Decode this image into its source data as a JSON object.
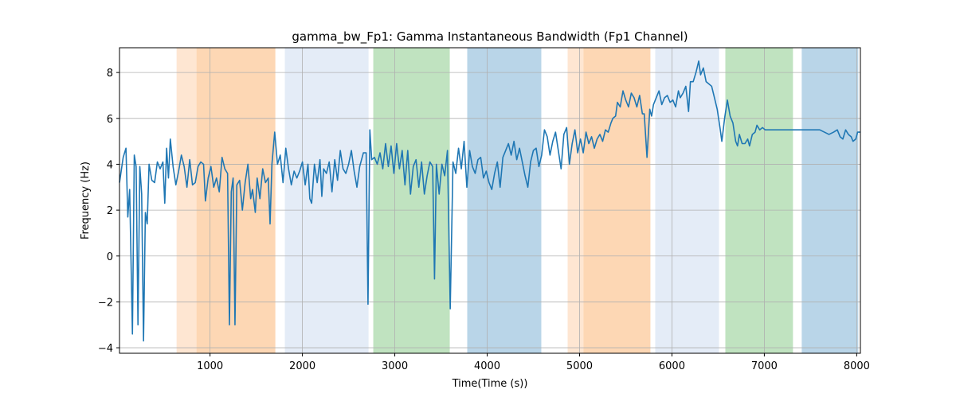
{
  "chart_data": {
    "type": "line",
    "title": "gamma_bw_Fp1: Gamma Instantaneous Bandwidth (Fp1 Channel)",
    "x_label": "Time(Time (s))",
    "y_label": "Frequency (Hz)",
    "color": "#1f77b4",
    "grid": true,
    "xlim": [
      20,
      8040
    ],
    "ylim": [
      -4.24,
      9.08
    ],
    "xticks": [
      1000,
      2000,
      3000,
      4000,
      5000,
      6000,
      7000,
      8000
    ],
    "yticks": [
      {
        "value": -4,
        "label": "−4"
      },
      {
        "value": -2,
        "label": "−2"
      },
      0,
      2,
      4,
      6,
      8
    ],
    "spans": [
      {
        "x0": 638,
        "x1": 853,
        "color": "#fee6d2"
      },
      {
        "x0": 853,
        "x1": 1707,
        "color": "#fdd7b4"
      },
      {
        "x0": 1810,
        "x1": 2716,
        "color": "#e4ecf7"
      },
      {
        "x0": 2767,
        "x1": 3595,
        "color": "#c0e3c0"
      },
      {
        "x0": 3784,
        "x1": 4586,
        "color": "#b9d5e8"
      },
      {
        "x0": 4871,
        "x1": 5043,
        "color": "#fee6d2"
      },
      {
        "x0": 5043,
        "x1": 5767,
        "color": "#fdd7b4"
      },
      {
        "x0": 5819,
        "x1": 6509,
        "color": "#e4ecf7"
      },
      {
        "x0": 6578,
        "x1": 7310,
        "color": "#c0e3c0"
      },
      {
        "x0": 7405,
        "x1": 8017,
        "color": "#b9d5e8"
      }
    ],
    "x": [
      20,
      60,
      90,
      110,
      130,
      160,
      180,
      200,
      220,
      240,
      260,
      280,
      300,
      320,
      340,
      370,
      400,
      430,
      460,
      490,
      510,
      530,
      550,
      570,
      600,
      630,
      660,
      690,
      720,
      750,
      780,
      810,
      840,
      870,
      900,
      930,
      950,
      980,
      1010,
      1040,
      1070,
      1100,
      1130,
      1160,
      1190,
      1210,
      1230,
      1250,
      1270,
      1290,
      1320,
      1350,
      1380,
      1410,
      1440,
      1460,
      1490,
      1510,
      1540,
      1570,
      1600,
      1630,
      1650,
      1670,
      1700,
      1730,
      1760,
      1790,
      1820,
      1850,
      1880,
      1910,
      1940,
      1970,
      2000,
      2030,
      2060,
      2080,
      2100,
      2130,
      2160,
      2190,
      2210,
      2230,
      2260,
      2290,
      2320,
      2350,
      2380,
      2410,
      2440,
      2470,
      2500,
      2530,
      2560,
      2590,
      2620,
      2660,
      2690,
      2710,
      2730,
      2750,
      2780,
      2810,
      2840,
      2870,
      2900,
      2930,
      2960,
      2990,
      3020,
      3050,
      3080,
      3110,
      3140,
      3170,
      3200,
      3230,
      3260,
      3290,
      3320,
      3350,
      3380,
      3410,
      3430,
      3450,
      3480,
      3510,
      3540,
      3570,
      3600,
      3630,
      3660,
      3690,
      3720,
      3750,
      3780,
      3810,
      3840,
      3870,
      3900,
      3930,
      3960,
      3990,
      4020,
      4050,
      4080,
      4110,
      4140,
      4170,
      4200,
      4230,
      4260,
      4290,
      4320,
      4350,
      4380,
      4410,
      4440,
      4470,
      4500,
      4530,
      4560,
      4590,
      4620,
      4650,
      4680,
      4710,
      4740,
      4770,
      4800,
      4830,
      4860,
      4890,
      4920,
      4950,
      4980,
      5010,
      5040,
      5070,
      5100,
      5130,
      5160,
      5190,
      5220,
      5250,
      5280,
      5310,
      5340,
      5360,
      5390,
      5410,
      5440,
      5470,
      5500,
      5530,
      5560,
      5590,
      5620,
      5650,
      5680,
      5700,
      5730,
      5760,
      5780,
      5800,
      5830,
      5860,
      5890,
      5920,
      5950,
      5980,
      6010,
      6040,
      6070,
      6090,
      6120,
      6150,
      6180,
      6200,
      6230,
      6260,
      6290,
      6310,
      6340,
      6370,
      6400,
      6430,
      6460,
      6490,
      6520,
      6540,
      6570,
      6600,
      6630,
      6660,
      6690,
      6710,
      6730,
      6760,
      6790,
      6820,
      6840,
      6870,
      6900,
      6920,
      6950,
      6980,
      7010,
      7040,
      7100,
      7200,
      7300,
      7400,
      7500,
      7600,
      7650,
      7700,
      7750,
      7790,
      7820,
      7850,
      7880,
      7910,
      7940,
      7960,
      7990,
      8010,
      8040
    ],
    "values": [
      3.2,
      4.3,
      4.7,
      1.7,
      2.9,
      -3.4,
      4.4,
      3.9,
      -3.0,
      3.9,
      2.7,
      -3.7,
      1.9,
      1.4,
      4.0,
      3.3,
      3.2,
      4.1,
      3.8,
      4.1,
      2.3,
      4.7,
      3.4,
      5.1,
      3.9,
      3.1,
      3.7,
      4.4,
      3.9,
      3.0,
      4.2,
      3.1,
      3.2,
      3.9,
      4.1,
      4.0,
      2.4,
      3.4,
      3.9,
      3.0,
      3.4,
      2.8,
      4.3,
      3.8,
      3.6,
      -3.0,
      2.8,
      3.4,
      -3.0,
      3.1,
      3.3,
      2.0,
      3.2,
      4.0,
      2.5,
      2.9,
      1.9,
      3.4,
      2.5,
      3.8,
      3.2,
      3.4,
      1.4,
      4.0,
      5.4,
      4.0,
      4.4,
      3.2,
      4.7,
      3.8,
      3.1,
      3.7,
      3.4,
      3.7,
      4.1,
      3.1,
      4.0,
      2.5,
      2.3,
      4.0,
      3.2,
      4.2,
      2.6,
      3.8,
      3.6,
      4.1,
      2.8,
      4.2,
      3.3,
      4.6,
      3.8,
      3.6,
      4.0,
      4.6,
      3.7,
      3.0,
      3.9,
      4.5,
      4.5,
      -2.1,
      5.5,
      4.2,
      4.3,
      4.0,
      4.5,
      3.8,
      4.9,
      3.9,
      4.8,
      3.6,
      4.9,
      3.8,
      4.6,
      3.1,
      4.6,
      2.7,
      3.9,
      4.2,
      3.0,
      4.1,
      2.7,
      3.5,
      4.1,
      3.9,
      -1.0,
      4.0,
      2.7,
      4.0,
      3.5,
      4.6,
      -2.3,
      4.1,
      3.6,
      4.7,
      3.8,
      5.0,
      3.0,
      4.6,
      3.9,
      3.6,
      4.2,
      4.3,
      3.4,
      3.7,
      3.2,
      2.9,
      3.6,
      4.1,
      3.0,
      4.3,
      4.6,
      4.9,
      4.4,
      5.0,
      4.2,
      4.7,
      4.1,
      3.5,
      3.0,
      4.1,
      4.6,
      4.7,
      3.9,
      4.4,
      5.5,
      5.2,
      4.4,
      5.0,
      5.4,
      4.6,
      3.8,
      5.3,
      5.6,
      4.0,
      4.9,
      5.5,
      4.5,
      5.1,
      4.5,
      5.4,
      4.9,
      5.2,
      4.7,
      5.1,
      5.3,
      5.0,
      5.5,
      5.4,
      5.8,
      6.0,
      6.1,
      6.7,
      6.5,
      7.2,
      6.8,
      6.5,
      7.1,
      6.9,
      6.5,
      7.0,
      6.2,
      6.2,
      4.3,
      6.4,
      6.1,
      6.6,
      6.9,
      7.2,
      6.6,
      6.9,
      7.0,
      6.7,
      6.8,
      6.5,
      7.2,
      6.9,
      7.1,
      7.4,
      6.3,
      7.6,
      7.6,
      8.0,
      8.5,
      7.9,
      8.2,
      7.6,
      7.5,
      7.4,
      6.9,
      6.4,
      5.6,
      5.0,
      6.0,
      6.8,
      6.1,
      5.8,
      5.0,
      4.8,
      5.3,
      4.9,
      4.9,
      5.1,
      4.8,
      5.3,
      5.4,
      5.7,
      5.5,
      5.6,
      5.5,
      5.5,
      5.5,
      5.5,
      5.5,
      5.5,
      5.5,
      5.5,
      5.4,
      5.3,
      5.4,
      5.5,
      5.2,
      5.1,
      5.5,
      5.3,
      5.2,
      5.0,
      5.1,
      5.4,
      5.4
    ]
  }
}
